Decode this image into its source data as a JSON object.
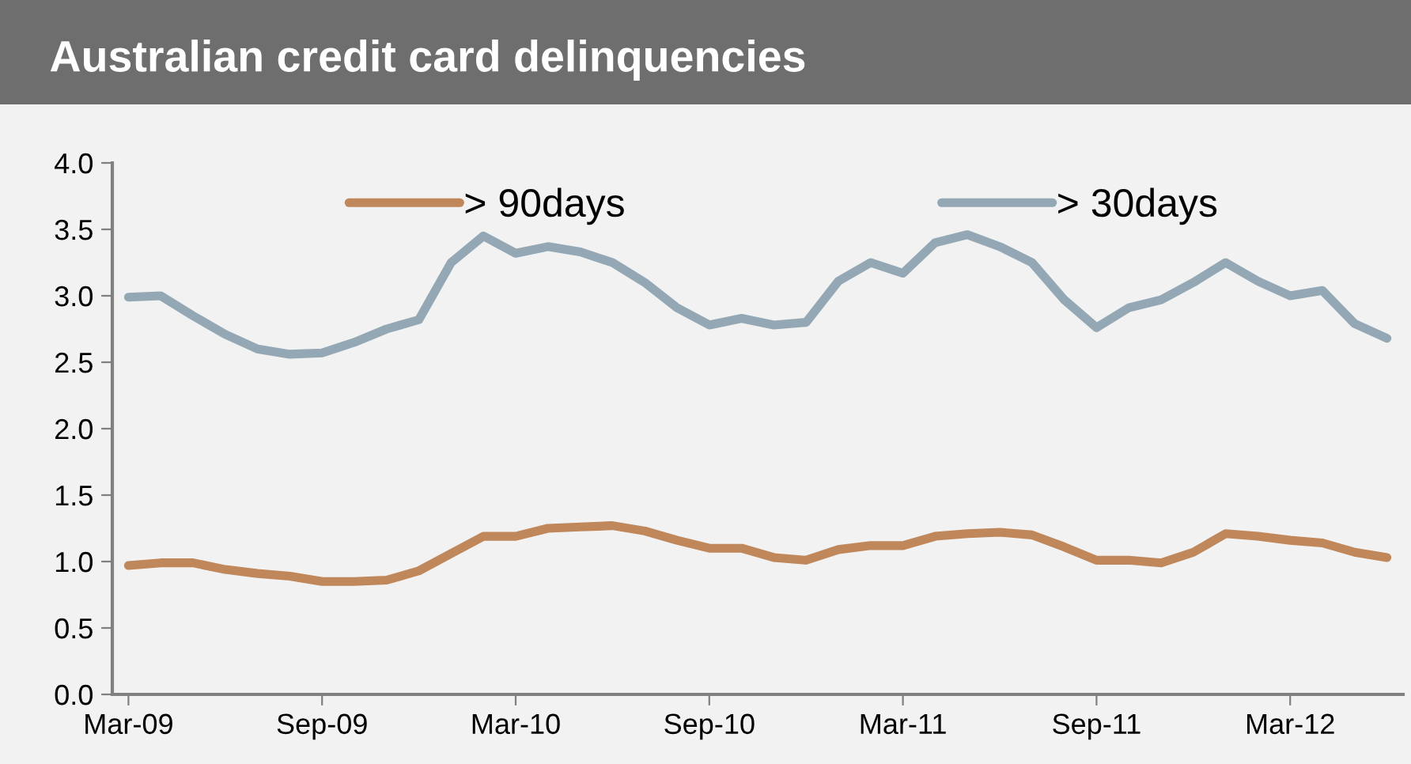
{
  "chart_data": {
    "type": "line",
    "title": "Australian credit card delinquencies",
    "categories": [
      "Mar-09",
      null,
      null,
      null,
      null,
      null,
      "Sep-09",
      null,
      null,
      null,
      null,
      null,
      "Mar-10",
      null,
      null,
      null,
      null,
      null,
      "Sep-10",
      null,
      null,
      null,
      null,
      null,
      "Mar-11",
      null,
      null,
      null,
      null,
      null,
      "Sep-11",
      null,
      null,
      null,
      null,
      null,
      "Mar-12",
      null,
      null,
      null
    ],
    "series": [
      {
        "name": "> 90days",
        "color": "#c0875a",
        "values": [
          0.97,
          0.99,
          0.99,
          0.94,
          0.91,
          0.89,
          0.85,
          0.85,
          0.86,
          0.93,
          1.06,
          1.19,
          1.19,
          1.25,
          1.26,
          1.27,
          1.23,
          1.16,
          1.1,
          1.1,
          1.03,
          1.01,
          1.09,
          1.12,
          1.12,
          1.19,
          1.21,
          1.22,
          1.2,
          1.11,
          1.01,
          1.01,
          0.99,
          1.07,
          1.21,
          1.19,
          1.16,
          1.14,
          1.07,
          1.03
        ]
      },
      {
        "name": "> 30days",
        "color": "#93a8b4",
        "values": [
          2.99,
          3.0,
          2.85,
          2.71,
          2.6,
          2.56,
          2.57,
          2.65,
          2.75,
          2.82,
          3.25,
          3.45,
          3.32,
          3.37,
          3.33,
          3.25,
          3.1,
          2.91,
          2.78,
          2.83,
          2.78,
          2.8,
          3.11,
          3.25,
          3.17,
          3.4,
          3.46,
          3.37,
          3.25,
          2.97,
          2.76,
          2.91,
          2.97,
          3.1,
          3.25,
          3.11,
          3.0,
          3.04,
          2.79,
          2.68
        ]
      }
    ],
    "ylim": [
      0,
      4
    ],
    "yticks": [
      {
        "value": 0,
        "label": "0.0"
      },
      {
        "value": 0.5,
        "label": "0.5"
      },
      {
        "value": 1,
        "label": "1.0"
      },
      {
        "value": 1.5,
        "label": "1.5"
      },
      {
        "value": 2,
        "label": "2.0"
      },
      {
        "value": 2.5,
        "label": "2.5"
      },
      {
        "value": 3,
        "label": "3.0"
      },
      {
        "value": 3.5,
        "label": "3.5"
      },
      {
        "value": 4,
        "label": "4.0"
      }
    ],
    "grid": false,
    "legend": "top",
    "marker": "none",
    "line_style": "solid"
  }
}
